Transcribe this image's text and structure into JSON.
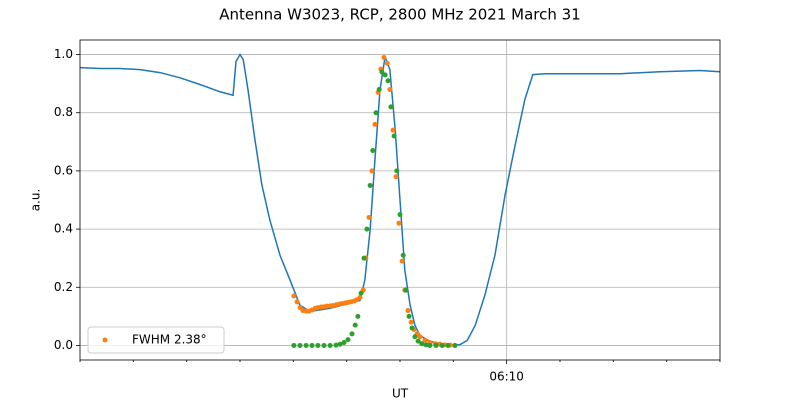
{
  "chart_data": {
    "type": "line",
    "title": "Antenna W3023, RCP, 2800 MHz 2021 March 31",
    "xlabel": "UT",
    "ylabel": "a.u.",
    "xlim": [
      2,
      14
    ],
    "ylim": [
      -0.05,
      1.05
    ],
    "xticks": [
      {
        "value": 10,
        "label": "06:10"
      }
    ],
    "xminorticks": [
      2,
      3,
      4,
      5,
      6,
      7,
      8,
      9,
      11,
      12,
      13,
      14
    ],
    "yticks": [
      {
        "value": 0,
        "label": "0.0"
      },
      0.2,
      0.4,
      0.6,
      0.8,
      {
        "value": 1,
        "label": "1.0"
      }
    ],
    "grid": true,
    "legend": "lower left",
    "series": [
      {
        "type": "line",
        "color": "#1f77b4",
        "x": [
          2.0,
          2.375,
          2.75,
          3.125,
          3.5,
          3.875,
          4.25,
          4.625,
          4.87,
          4.925,
          5.0,
          5.06,
          5.15,
          5.28,
          5.41,
          5.56,
          5.75,
          5.94,
          6.125,
          6.31,
          6.69,
          7.06,
          7.25,
          7.34,
          7.44,
          7.53,
          7.625,
          7.72,
          7.81,
          7.91,
          8.0,
          8.09,
          8.19,
          8.28,
          8.375,
          8.56,
          8.94,
          9.125,
          9.26,
          9.41,
          9.59,
          9.78,
          9.97,
          10.16,
          10.34,
          10.49,
          10.72,
          11.375,
          12.125,
          12.875,
          13.625,
          14.0
        ],
        "values": [
          0.955,
          0.952,
          0.952,
          0.948,
          0.938,
          0.92,
          0.897,
          0.872,
          0.86,
          0.976,
          1.0,
          0.983,
          0.879,
          0.707,
          0.552,
          0.431,
          0.31,
          0.224,
          0.138,
          0.117,
          0.128,
          0.145,
          0.155,
          0.224,
          0.397,
          0.638,
          0.879,
          0.993,
          0.948,
          0.741,
          0.5,
          0.259,
          0.138,
          0.069,
          0.034,
          0.014,
          0.0,
          0.003,
          0.017,
          0.069,
          0.172,
          0.31,
          0.517,
          0.69,
          0.845,
          0.931,
          0.934,
          0.934,
          0.934,
          0.941,
          0.945,
          0.941
        ]
      },
      {
        "type": "scatter",
        "name": "FWHM 2.38°",
        "color": "#ff7f0e",
        "x": [
          6.01,
          6.07,
          6.125,
          6.18,
          6.24,
          6.29,
          6.35,
          6.41,
          6.46,
          6.52,
          6.575,
          6.63,
          6.69,
          6.74,
          6.8,
          6.86,
          6.91,
          6.97,
          7.025,
          7.08,
          7.14,
          7.19,
          7.25,
          7.31,
          7.36,
          7.42,
          7.475,
          7.53,
          7.59,
          7.64,
          7.7,
          7.76,
          7.81,
          7.87,
          7.925,
          7.98,
          8.04,
          8.09,
          8.15,
          8.21,
          8.26,
          8.32,
          8.375,
          8.47,
          8.56,
          8.66,
          8.75,
          8.84,
          8.94,
          9.03
        ],
        "values": [
          0.17,
          0.15,
          0.13,
          0.12,
          0.118,
          0.118,
          0.122,
          0.128,
          0.13,
          0.132,
          0.133,
          0.135,
          0.136,
          0.137,
          0.14,
          0.142,
          0.144,
          0.146,
          0.148,
          0.15,
          0.153,
          0.157,
          0.165,
          0.19,
          0.3,
          0.44,
          0.6,
          0.76,
          0.87,
          0.95,
          0.99,
          0.97,
          0.88,
          0.74,
          0.58,
          0.42,
          0.29,
          0.19,
          0.12,
          0.08,
          0.055,
          0.04,
          0.03,
          0.018,
          0.01,
          0.006,
          0.004,
          0.002,
          0.001,
          0.0
        ]
      },
      {
        "type": "scatter",
        "color": "#2ca02c",
        "x": [
          6.01,
          6.125,
          6.24,
          6.35,
          6.46,
          6.575,
          6.69,
          6.8,
          6.875,
          6.95,
          7.025,
          7.1,
          7.16,
          7.21,
          7.27,
          7.325,
          7.38,
          7.44,
          7.49,
          7.55,
          7.61,
          7.66,
          7.72,
          7.775,
          7.83,
          7.89,
          7.94,
          8.0,
          8.06,
          8.11,
          8.17,
          8.225,
          8.28,
          8.34,
          8.41,
          8.49,
          8.56,
          8.675,
          8.79,
          8.9,
          9.03
        ],
        "values": [
          0,
          0,
          0,
          0,
          0,
          0,
          0,
          0.001,
          0.004,
          0.01,
          0.02,
          0.04,
          0.07,
          0.1,
          0.18,
          0.3,
          0.4,
          0.55,
          0.67,
          0.8,
          0.88,
          0.94,
          0.93,
          0.91,
          0.82,
          0.72,
          0.6,
          0.45,
          0.31,
          0.19,
          0.1,
          0.06,
          0.03,
          0.015,
          0.006,
          0.002,
          0,
          0,
          0,
          0,
          0
        ]
      }
    ]
  }
}
